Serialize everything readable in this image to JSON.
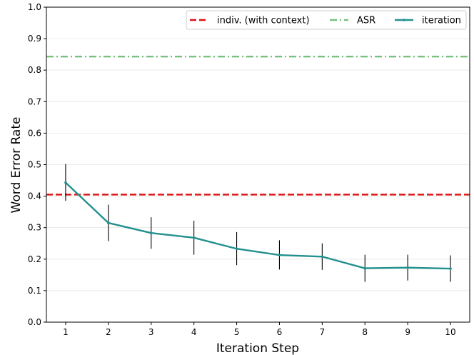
{
  "chart_data": {
    "type": "line",
    "xlabel": "Iteration Step",
    "ylabel": "Word Error Rate",
    "ylim": [
      0.0,
      1.0
    ],
    "xlim": [
      0.55,
      10.45
    ],
    "x_ticks": [
      1,
      2,
      3,
      4,
      5,
      6,
      7,
      8,
      9,
      10
    ],
    "y_ticks": [
      "0.0",
      "0.1",
      "0.2",
      "0.3",
      "0.4",
      "0.5",
      "0.6",
      "0.7",
      "0.8",
      "0.9",
      "1.0"
    ],
    "grid": "horizontal",
    "legend_position": "top-right",
    "reference_lines": [
      {
        "name": "indiv. (with context)",
        "value": 0.405,
        "color": "#dd1111",
        "style": "dashed"
      },
      {
        "name": "ASR",
        "value": 0.843,
        "color": "#77c17f",
        "style": "dashdot"
      }
    ],
    "series": [
      {
        "name": "iteration",
        "color": "#22908e",
        "x": [
          1,
          2,
          3,
          4,
          5,
          6,
          7,
          8,
          9,
          10
        ],
        "values": [
          0.443,
          0.315,
          0.283,
          0.268,
          0.233,
          0.213,
          0.208,
          0.171,
          0.173,
          0.17
        ],
        "error_low": [
          0.385,
          0.257,
          0.233,
          0.214,
          0.181,
          0.167,
          0.166,
          0.128,
          0.132,
          0.128
        ],
        "error_high": [
          0.502,
          0.373,
          0.333,
          0.322,
          0.286,
          0.26,
          0.25,
          0.214,
          0.214,
          0.212
        ]
      }
    ]
  }
}
